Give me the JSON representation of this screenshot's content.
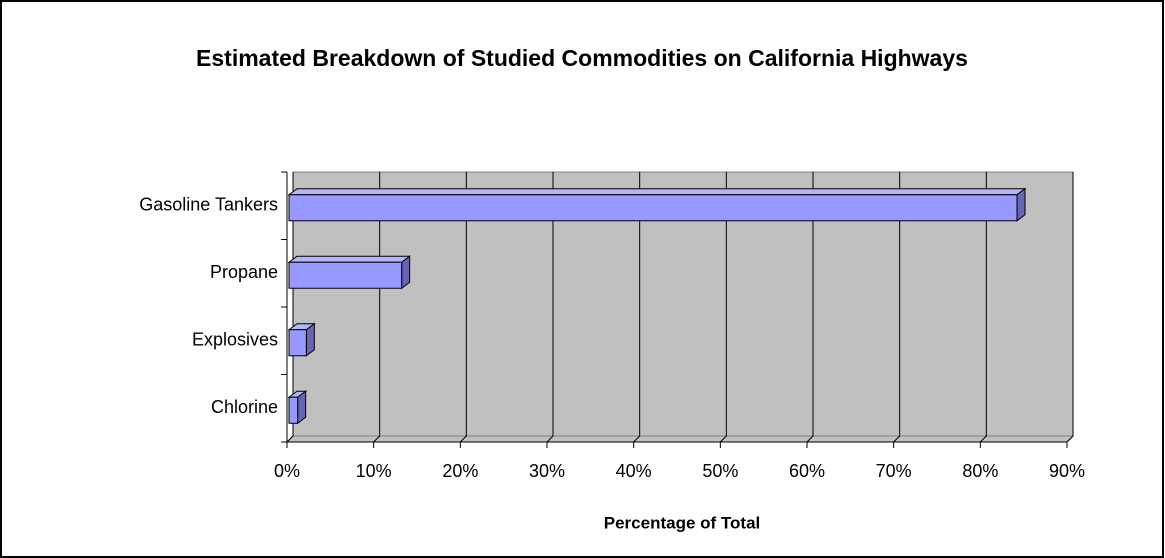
{
  "chart_data": {
    "type": "bar",
    "orientation": "horizontal",
    "title": "Estimated Breakdown of Studied Commodities on California Highways",
    "x_label": "Percentage of Total",
    "categories": [
      "Gasoline Tankers",
      "Propane",
      "Explosives",
      "Chlorine"
    ],
    "values": [
      84,
      13,
      2,
      1
    ],
    "color": "#9999ff",
    "xlim": [
      0,
      90
    ],
    "xticks": [
      {
        "value": 0,
        "label": "0%"
      },
      {
        "value": 10,
        "label": "10%"
      },
      {
        "value": 20,
        "label": "20%"
      },
      {
        "value": 30,
        "label": "30%"
      },
      {
        "value": 40,
        "label": "40%"
      },
      {
        "value": 50,
        "label": "50%"
      },
      {
        "value": 60,
        "label": "60%"
      },
      {
        "value": 70,
        "label": "70%"
      },
      {
        "value": 80,
        "label": "80%"
      },
      {
        "value": 90,
        "label": "90%"
      }
    ],
    "grid": true
  }
}
